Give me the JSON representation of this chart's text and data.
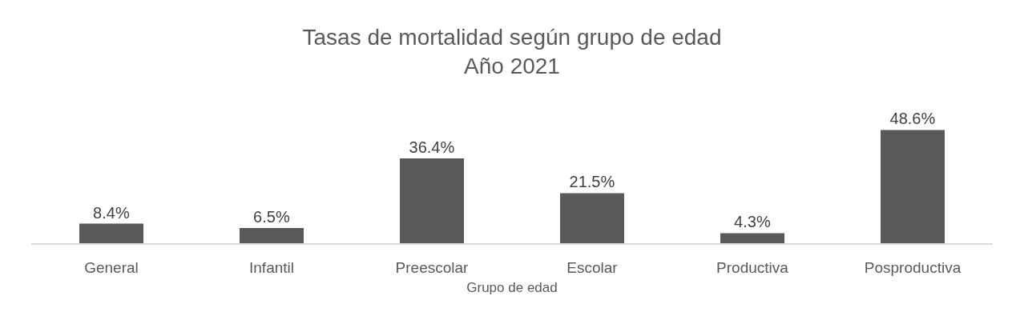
{
  "chart_data": {
    "type": "bar",
    "title": "Tasas de mortalidad según grupo de edad\nAño 2021",
    "xlabel": "Grupo de edad",
    "categories": [
      "General",
      "Infantil",
      "Preescolar",
      "Escolar",
      "Productiva",
      "Posproductiva"
    ],
    "values": [
      8.4,
      6.5,
      36.4,
      21.5,
      4.3,
      48.6
    ],
    "color": "#595959",
    "value_labels": [
      "8.4%",
      "6.5%",
      "36.4%",
      "21.5%",
      "4.3%",
      "48.6%"
    ],
    "tick_labels": "x"
  }
}
